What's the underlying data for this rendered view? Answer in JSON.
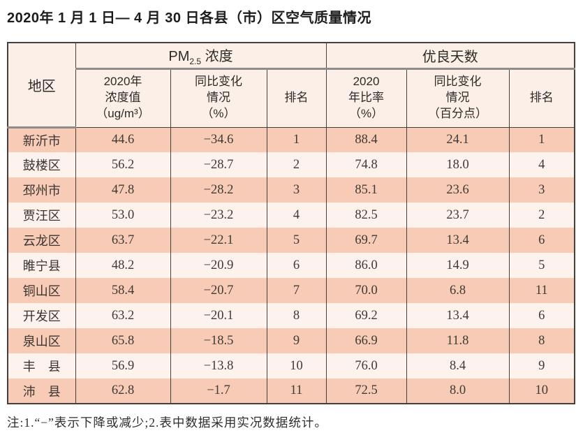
{
  "title": "2020年 1 月 1 日— 4 月 30 日各县（市）区空气质量情况",
  "table": {
    "region_header": "地区",
    "pm_group": {
      "prefix": "PM",
      "sub": "2.5",
      "suffix": " 浓度",
      "cols": [
        "2020年\n浓度值\n（ug/m³）",
        "同比变化\n情况\n（%）",
        "排名"
      ]
    },
    "good_group": {
      "title": "优良天数",
      "cols": [
        "2020\n年比率\n（%）",
        "同比变化\n情况\n（百分点）",
        "排名"
      ]
    },
    "rows": [
      [
        "新沂市",
        "44.6",
        "−34.6",
        "1",
        "88.4",
        "24.1",
        "1"
      ],
      [
        "鼓楼区",
        "56.2",
        "−28.7",
        "2",
        "74.8",
        "18.0",
        "4"
      ],
      [
        "邳州市",
        "47.8",
        "−28.2",
        "3",
        "85.1",
        "23.6",
        "3"
      ],
      [
        "贾汪区",
        "53.0",
        "−23.2",
        "4",
        "82.5",
        "23.7",
        "2"
      ],
      [
        "云龙区",
        "63.7",
        "−22.1",
        "5",
        "69.7",
        "13.4",
        "6"
      ],
      [
        "睢宁县",
        "48.2",
        "−20.9",
        "6",
        "86.0",
        "14.9",
        "5"
      ],
      [
        "铜山区",
        "58.4",
        "−20.7",
        "7",
        "70.0",
        "6.8",
        "11"
      ],
      [
        "开发区",
        "63.2",
        "−20.1",
        "8",
        "69.2",
        "13.4",
        "6"
      ],
      [
        "泉山区",
        "65.8",
        "−18.5",
        "9",
        "66.9",
        "11.8",
        "8"
      ],
      [
        "丰　县",
        "56.9",
        "−13.8",
        "10",
        "76.0",
        "8.4",
        "9"
      ],
      [
        "沛　县",
        "62.8",
        "−1.7",
        "11",
        "72.5",
        "8.0",
        "10"
      ]
    ]
  },
  "note": "注:1.“−”表示下降或减少;2.表中数据采用实况数据统计。",
  "colors": {
    "row_salmon": "#f7cbb6",
    "row_light": "#fdf2ec",
    "header_bg": "#fcefe7",
    "border_dark": "#45403b",
    "header_divider_gray": "#8e8b88"
  }
}
